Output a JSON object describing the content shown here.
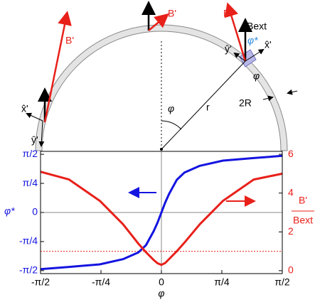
{
  "chart_data": {
    "type": "line",
    "x": [
      -1.5708,
      -1.2,
      -0.8,
      -0.5,
      -0.3,
      -0.2,
      -0.1,
      -0.05,
      0,
      0.05,
      0.1,
      0.2,
      0.3,
      0.5,
      0.8,
      1.2,
      1.5708
    ],
    "series": [
      {
        "name": "φ*",
        "color": "#1414e0",
        "axis": "y",
        "values": [
          -1.53,
          -1.47,
          -1.4,
          -1.26,
          -1.08,
          -0.88,
          -0.5,
          -0.27,
          0,
          0.27,
          0.5,
          0.88,
          1.08,
          1.26,
          1.4,
          1.47,
          1.53
        ]
      },
      {
        "name": "B'/Bext",
        "color": "#e8201a",
        "axis": "y2",
        "values": [
          5.1,
          4.7,
          3.6,
          2.4,
          1.4,
          0.95,
          0.55,
          0.38,
          0.3,
          0.4,
          0.6,
          1.0,
          1.45,
          2.4,
          3.6,
          4.7,
          5.0
        ]
      }
    ],
    "xlabel": "φ",
    "ylabel": "φ*",
    "y2label": {
      "numerator": "B'",
      "denominator": "Bext"
    },
    "xlim": [
      -1.5708,
      1.5708
    ],
    "xticks": [
      {
        "value": -1.5708,
        "label": "-π/2"
      },
      {
        "value": -0.7854,
        "label": "-π/4"
      },
      0,
      {
        "value": 0.7854,
        "label": "π/4"
      },
      {
        "value": 1.5708,
        "label": "π/2"
      }
    ],
    "ylim": [
      -1.65,
      1.65
    ],
    "yticks": [
      {
        "value": -1.5708,
        "label": "-π/2"
      },
      {
        "value": -0.7854,
        "label": "-π/4"
      },
      0,
      {
        "value": 0.7854,
        "label": "π/4"
      },
      {
        "value": 1.5708,
        "label": "π/2"
      }
    ],
    "y2lim": [
      -0.15,
      6.15
    ],
    "y2ticks": [
      0,
      2,
      4,
      6
    ],
    "reference_line": {
      "value": 1,
      "axis": "y2",
      "color": "#e8201a"
    },
    "zero_lines": true
  },
  "diagram": {
    "b_prime_left": "B'",
    "b_prime_top": "B'",
    "b_prime_right": "B'",
    "b_ext": "Bext",
    "phi_star": "φ*",
    "phi_local": "φ",
    "phi_center": "φ",
    "radius": "r",
    "thickness": "2R",
    "x_hat_right": "x̂'",
    "y_hat_right": "ŷ'",
    "x_hat_left": "x̂'",
    "y_hat_left": "ŷ'"
  }
}
